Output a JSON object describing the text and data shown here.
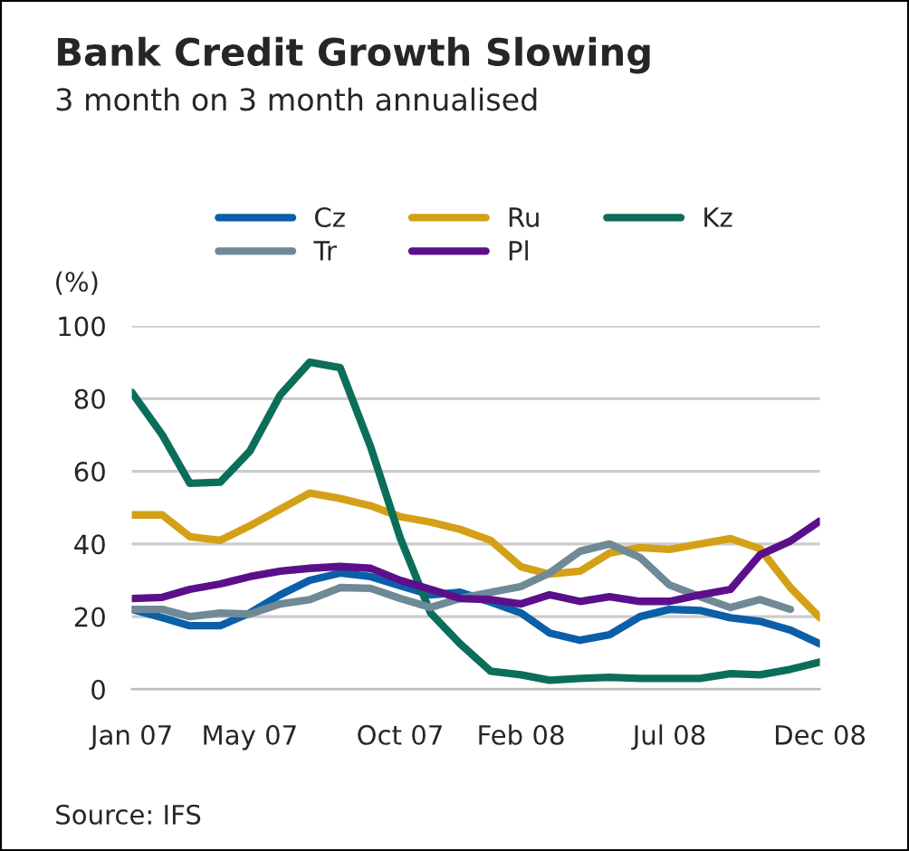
{
  "chart_data": {
    "type": "line",
    "title": "Bank Credit Growth Slowing",
    "subtitle": "3 month on 3 month annualised",
    "ylabel": "(%)",
    "x": [
      "2007-01",
      "2007-02",
      "2007-03",
      "2007-04",
      "2007-05",
      "2007-06",
      "2007-07",
      "2007-08",
      "2007-09",
      "2007-10",
      "2007-11",
      "2007-12",
      "2008-01",
      "2008-02",
      "2008-03",
      "2008-04",
      "2008-05",
      "2008-06",
      "2008-07",
      "2008-08",
      "2008-09",
      "2008-10",
      "2008-11",
      "2008-12"
    ],
    "series": [
      {
        "name": "Cz",
        "color": "#0a5fa8",
        "values": [
          22,
          19.7,
          17.5,
          17.5,
          21,
          26,
          30,
          32,
          31,
          28.5,
          26,
          26.7,
          24,
          21,
          15.5,
          13.5,
          15,
          20,
          22,
          21.7,
          19.7,
          18.7,
          16.3,
          12.5
        ]
      },
      {
        "name": "Ru",
        "color": "#d4a017",
        "values": [
          48,
          48,
          42,
          41,
          45,
          49.6,
          54,
          52.5,
          50.5,
          47.5,
          46,
          44,
          41,
          33.7,
          31.7,
          32.5,
          37.5,
          39,
          38.5,
          40,
          41.5,
          38.7,
          28,
          19.7
        ]
      },
      {
        "name": "Kz",
        "color": "#0b6e5a",
        "values": [
          81.7,
          70,
          56.7,
          57,
          65.5,
          81,
          90,
          88.5,
          66.7,
          41.7,
          21,
          12.5,
          5,
          4,
          2.5,
          3,
          3.3,
          3,
          3,
          3,
          4.3,
          4,
          5.5,
          7.5
        ]
      },
      {
        "name": "Tr",
        "color": "#6f8a96",
        "values": [
          22,
          22,
          20,
          21,
          20.7,
          23.5,
          24.7,
          28,
          27.8,
          25,
          22.5,
          25,
          26.7,
          28.3,
          32,
          38,
          40,
          36.3,
          28.7,
          25.5,
          22.5,
          24.7,
          22,
          null
        ]
      },
      {
        "name": "Pl",
        "color": "#5c0f8b",
        "values": [
          25,
          25.3,
          27.5,
          29,
          31,
          32.5,
          33.3,
          33.8,
          33.3,
          30,
          27.5,
          25,
          24.7,
          23.5,
          26,
          24.2,
          25.5,
          24.2,
          24.2,
          26,
          27.5,
          37,
          40.8,
          46.3
        ]
      }
    ],
    "xlim": [
      "2007-01",
      "2008-12"
    ],
    "xticks": [
      {
        "value": "2007-01",
        "label": "Jan 07"
      },
      {
        "value": "2007-05",
        "label": "May 07"
      },
      {
        "value": "2007-10",
        "label": "Oct 07"
      },
      {
        "value": "2008-02",
        "label": "Feb 08"
      },
      {
        "value": "2008-07",
        "label": "Jul 08"
      },
      {
        "value": "2008-12",
        "label": "Dec 08"
      }
    ],
    "ylim": [
      0,
      100
    ],
    "yticks": [
      0,
      20,
      40,
      60,
      80,
      100
    ],
    "grid": "y",
    "legend": "top",
    "marker": "none",
    "line_style": "solid",
    "annotations": [
      "Source: IFS"
    ]
  }
}
